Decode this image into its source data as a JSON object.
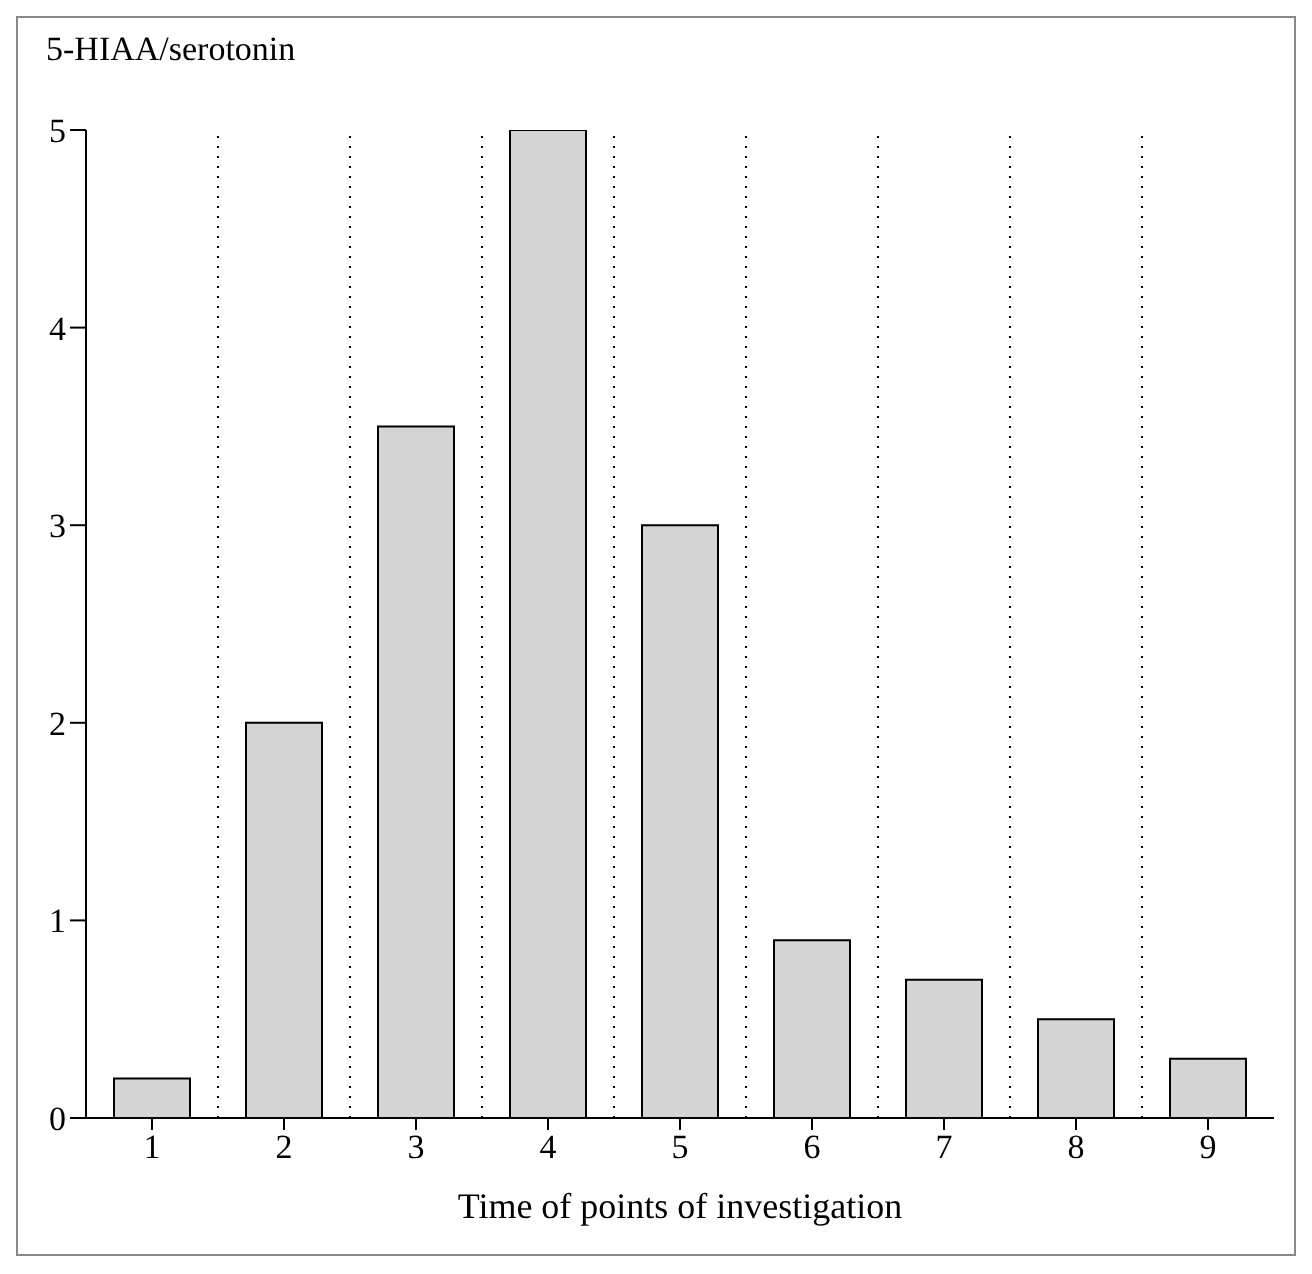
{
  "chart_data": {
    "type": "bar",
    "ylabel": "5-HIAA/serotonin",
    "xlabel": "Time of points of investigation",
    "categories": [
      "1",
      "2",
      "3",
      "4",
      "5",
      "6",
      "7",
      "8",
      "9"
    ],
    "values": [
      0.2,
      2,
      3.5,
      5,
      3,
      0.9,
      0.7,
      0.5,
      0.3
    ],
    "color": "#d4d4d4",
    "ylim": [
      0,
      5
    ],
    "yticks": [
      0,
      1,
      2,
      3,
      4,
      5
    ],
    "grid": "x"
  }
}
